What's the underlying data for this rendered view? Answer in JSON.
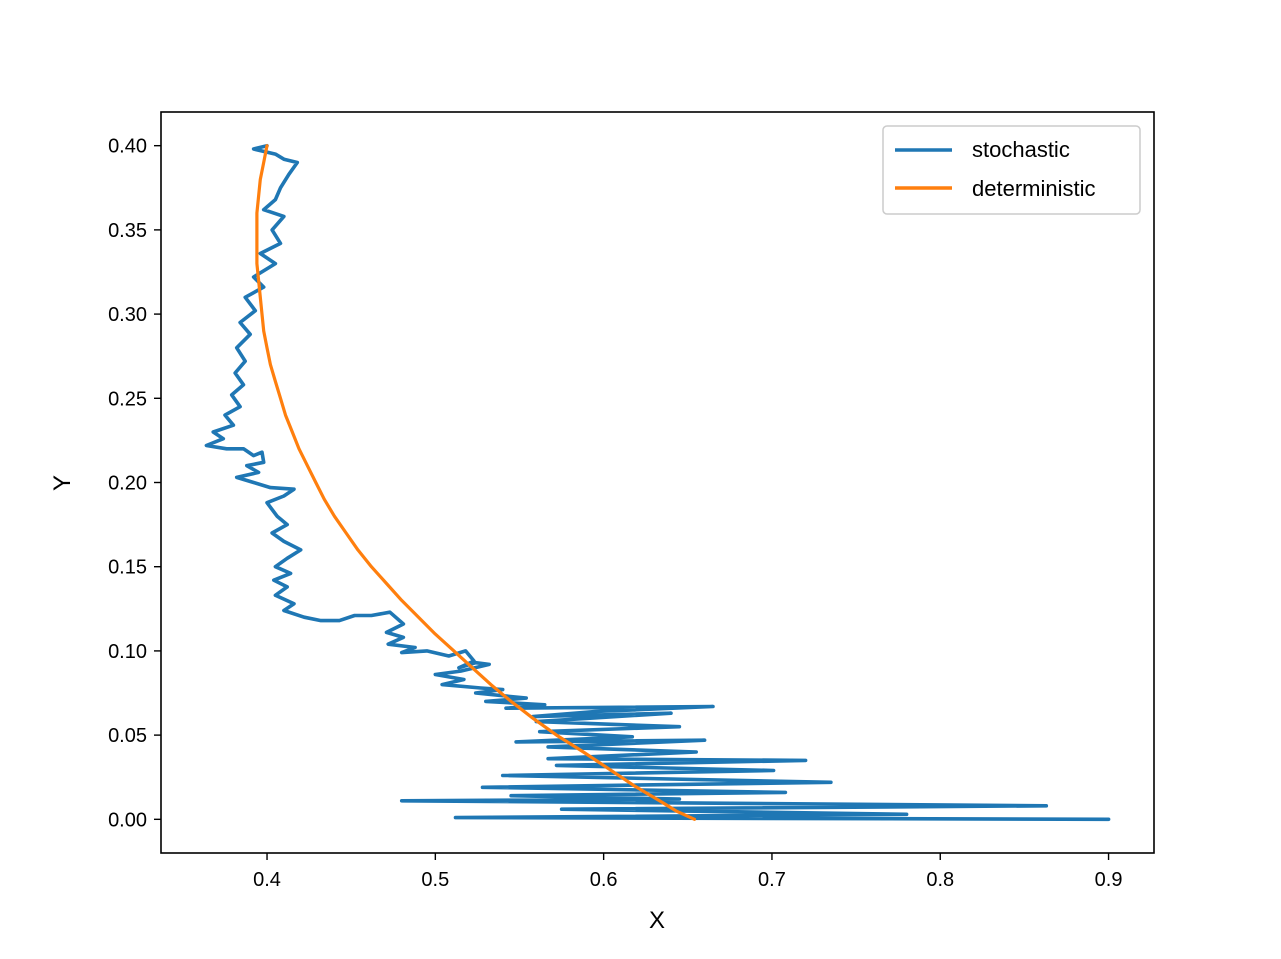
{
  "chart_data": {
    "type": "line",
    "title": "",
    "xlabel": "X",
    "ylabel": "Y",
    "xlim": [
      0.337,
      0.927
    ],
    "ylim": [
      -0.02,
      0.42
    ],
    "xticks": [
      0.4,
      0.5,
      0.6,
      0.7,
      0.8,
      0.9
    ],
    "yticks": [
      0.0,
      0.05,
      0.1,
      0.15,
      0.2,
      0.25,
      0.3,
      0.35,
      0.4
    ],
    "xtick_labels": [
      "0.4",
      "0.5",
      "0.6",
      "0.7",
      "0.8",
      "0.9"
    ],
    "ytick_labels": [
      "0.00",
      "0.05",
      "0.10",
      "0.15",
      "0.20",
      "0.25",
      "0.30",
      "0.35",
      "0.40"
    ],
    "grid": false,
    "legend_position": "top-right",
    "series": [
      {
        "name": "stochastic",
        "color": "#1f77b4",
        "points": [
          [
            0.4,
            0.4
          ],
          [
            0.392,
            0.398
          ],
          [
            0.405,
            0.395
          ],
          [
            0.41,
            0.392
          ],
          [
            0.418,
            0.39
          ],
          [
            0.413,
            0.383
          ],
          [
            0.408,
            0.375
          ],
          [
            0.405,
            0.368
          ],
          [
            0.398,
            0.362
          ],
          [
            0.41,
            0.358
          ],
          [
            0.403,
            0.35
          ],
          [
            0.408,
            0.342
          ],
          [
            0.396,
            0.336
          ],
          [
            0.405,
            0.33
          ],
          [
            0.392,
            0.322
          ],
          [
            0.398,
            0.316
          ],
          [
            0.387,
            0.31
          ],
          [
            0.393,
            0.302
          ],
          [
            0.384,
            0.295
          ],
          [
            0.39,
            0.288
          ],
          [
            0.382,
            0.28
          ],
          [
            0.387,
            0.272
          ],
          [
            0.381,
            0.265
          ],
          [
            0.386,
            0.258
          ],
          [
            0.379,
            0.252
          ],
          [
            0.384,
            0.245
          ],
          [
            0.375,
            0.24
          ],
          [
            0.38,
            0.234
          ],
          [
            0.368,
            0.23
          ],
          [
            0.374,
            0.226
          ],
          [
            0.364,
            0.222
          ],
          [
            0.376,
            0.22
          ],
          [
            0.386,
            0.22
          ],
          [
            0.392,
            0.216
          ],
          [
            0.397,
            0.218
          ],
          [
            0.398,
            0.212
          ],
          [
            0.388,
            0.21
          ],
          [
            0.395,
            0.206
          ],
          [
            0.382,
            0.203
          ],
          [
            0.392,
            0.2
          ],
          [
            0.402,
            0.197
          ],
          [
            0.416,
            0.196
          ],
          [
            0.41,
            0.192
          ],
          [
            0.4,
            0.188
          ],
          [
            0.406,
            0.18
          ],
          [
            0.412,
            0.175
          ],
          [
            0.403,
            0.17
          ],
          [
            0.41,
            0.165
          ],
          [
            0.42,
            0.16
          ],
          [
            0.412,
            0.155
          ],
          [
            0.405,
            0.15
          ],
          [
            0.414,
            0.146
          ],
          [
            0.404,
            0.142
          ],
          [
            0.412,
            0.138
          ],
          [
            0.405,
            0.133
          ],
          [
            0.416,
            0.128
          ],
          [
            0.41,
            0.124
          ],
          [
            0.422,
            0.12
          ],
          [
            0.432,
            0.118
          ],
          [
            0.443,
            0.118
          ],
          [
            0.452,
            0.121
          ],
          [
            0.462,
            0.121
          ],
          [
            0.473,
            0.123
          ],
          [
            0.481,
            0.116
          ],
          [
            0.471,
            0.111
          ],
          [
            0.481,
            0.108
          ],
          [
            0.472,
            0.104
          ],
          [
            0.488,
            0.102
          ],
          [
            0.48,
            0.099
          ],
          [
            0.495,
            0.1
          ],
          [
            0.508,
            0.097
          ],
          [
            0.518,
            0.1
          ],
          [
            0.523,
            0.094
          ],
          [
            0.514,
            0.09
          ],
          [
            0.524,
            0.093
          ],
          [
            0.532,
            0.092
          ],
          [
            0.515,
            0.088
          ],
          [
            0.5,
            0.086
          ],
          [
            0.517,
            0.083
          ],
          [
            0.504,
            0.08
          ],
          [
            0.527,
            0.078
          ],
          [
            0.54,
            0.077
          ],
          [
            0.524,
            0.075
          ],
          [
            0.554,
            0.072
          ],
          [
            0.53,
            0.07
          ],
          [
            0.565,
            0.068
          ],
          [
            0.542,
            0.066
          ],
          [
            0.665,
            0.067
          ],
          [
            0.595,
            0.064
          ],
          [
            0.558,
            0.061
          ],
          [
            0.64,
            0.063
          ],
          [
            0.56,
            0.058
          ],
          [
            0.645,
            0.055
          ],
          [
            0.562,
            0.052
          ],
          [
            0.617,
            0.049
          ],
          [
            0.548,
            0.046
          ],
          [
            0.66,
            0.047
          ],
          [
            0.567,
            0.043
          ],
          [
            0.655,
            0.04
          ],
          [
            0.567,
            0.036
          ],
          [
            0.72,
            0.035
          ],
          [
            0.572,
            0.032
          ],
          [
            0.701,
            0.029
          ],
          [
            0.54,
            0.026
          ],
          [
            0.735,
            0.022
          ],
          [
            0.528,
            0.019
          ],
          [
            0.708,
            0.016
          ],
          [
            0.545,
            0.014
          ],
          [
            0.645,
            0.012
          ],
          [
            0.48,
            0.011
          ],
          [
            0.863,
            0.008
          ],
          [
            0.575,
            0.006
          ],
          [
            0.78,
            0.003
          ],
          [
            0.512,
            0.001
          ],
          [
            0.9,
            0.0
          ]
        ]
      },
      {
        "name": "deterministic",
        "color": "#ff7f0e",
        "points": [
          [
            0.4,
            0.4
          ],
          [
            0.398,
            0.39
          ],
          [
            0.396,
            0.38
          ],
          [
            0.395,
            0.37
          ],
          [
            0.394,
            0.36
          ],
          [
            0.394,
            0.35
          ],
          [
            0.394,
            0.34
          ],
          [
            0.394,
            0.33
          ],
          [
            0.395,
            0.32
          ],
          [
            0.396,
            0.31
          ],
          [
            0.397,
            0.3
          ],
          [
            0.398,
            0.29
          ],
          [
            0.4,
            0.28
          ],
          [
            0.402,
            0.27
          ],
          [
            0.405,
            0.26
          ],
          [
            0.408,
            0.25
          ],
          [
            0.411,
            0.24
          ],
          [
            0.415,
            0.23
          ],
          [
            0.419,
            0.22
          ],
          [
            0.424,
            0.21
          ],
          [
            0.429,
            0.2
          ],
          [
            0.434,
            0.19
          ],
          [
            0.44,
            0.18
          ],
          [
            0.447,
            0.17
          ],
          [
            0.454,
            0.16
          ],
          [
            0.462,
            0.15
          ],
          [
            0.471,
            0.14
          ],
          [
            0.48,
            0.13
          ],
          [
            0.49,
            0.12
          ],
          [
            0.5,
            0.11
          ],
          [
            0.511,
            0.1
          ],
          [
            0.522,
            0.09
          ],
          [
            0.533,
            0.08
          ],
          [
            0.545,
            0.07
          ],
          [
            0.558,
            0.06
          ],
          [
            0.572,
            0.05
          ],
          [
            0.588,
            0.04
          ],
          [
            0.603,
            0.03
          ],
          [
            0.618,
            0.02
          ],
          [
            0.635,
            0.01
          ],
          [
            0.643,
            0.005
          ],
          [
            0.654,
            0.0
          ]
        ]
      }
    ]
  }
}
